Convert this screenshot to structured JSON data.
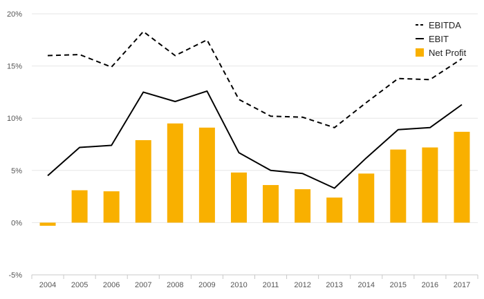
{
  "chart_data": {
    "type": "bar+line",
    "categories": [
      "2004",
      "2005",
      "2006",
      "2007",
      "2008",
      "2009",
      "2010",
      "2011",
      "2012",
      "2013",
      "2014",
      "2015",
      "2016",
      "2017"
    ],
    "series": [
      {
        "name": "EBITDA",
        "kind": "line",
        "style": "dashed",
        "color": "#000000",
        "values": [
          16.0,
          16.1,
          14.9,
          18.3,
          16.0,
          17.5,
          11.8,
          10.2,
          10.1,
          9.1,
          11.5,
          13.8,
          13.7,
          15.7
        ]
      },
      {
        "name": "EBIT",
        "kind": "line",
        "style": "solid",
        "color": "#000000",
        "values": [
          4.5,
          7.2,
          7.4,
          12.5,
          11.6,
          12.6,
          6.7,
          5.0,
          4.7,
          3.3,
          6.2,
          8.9,
          9.1,
          11.3
        ]
      },
      {
        "name": "Net Profit",
        "kind": "bar",
        "color": "#F9B000",
        "values": [
          -0.3,
          3.1,
          3.0,
          7.9,
          9.5,
          9.1,
          4.8,
          3.6,
          3.2,
          2.4,
          4.7,
          7.0,
          7.2,
          8.7
        ]
      }
    ],
    "y_ticks": [
      "-5%",
      "0%",
      "5%",
      "10%",
      "15%",
      "20%"
    ],
    "y_tick_values": [
      -5,
      0,
      5,
      10,
      15,
      20
    ],
    "ylim": [
      -5,
      20
    ],
    "grid": true,
    "legend_position": "top-right",
    "title": "",
    "xlabel": "",
    "ylabel": ""
  }
}
